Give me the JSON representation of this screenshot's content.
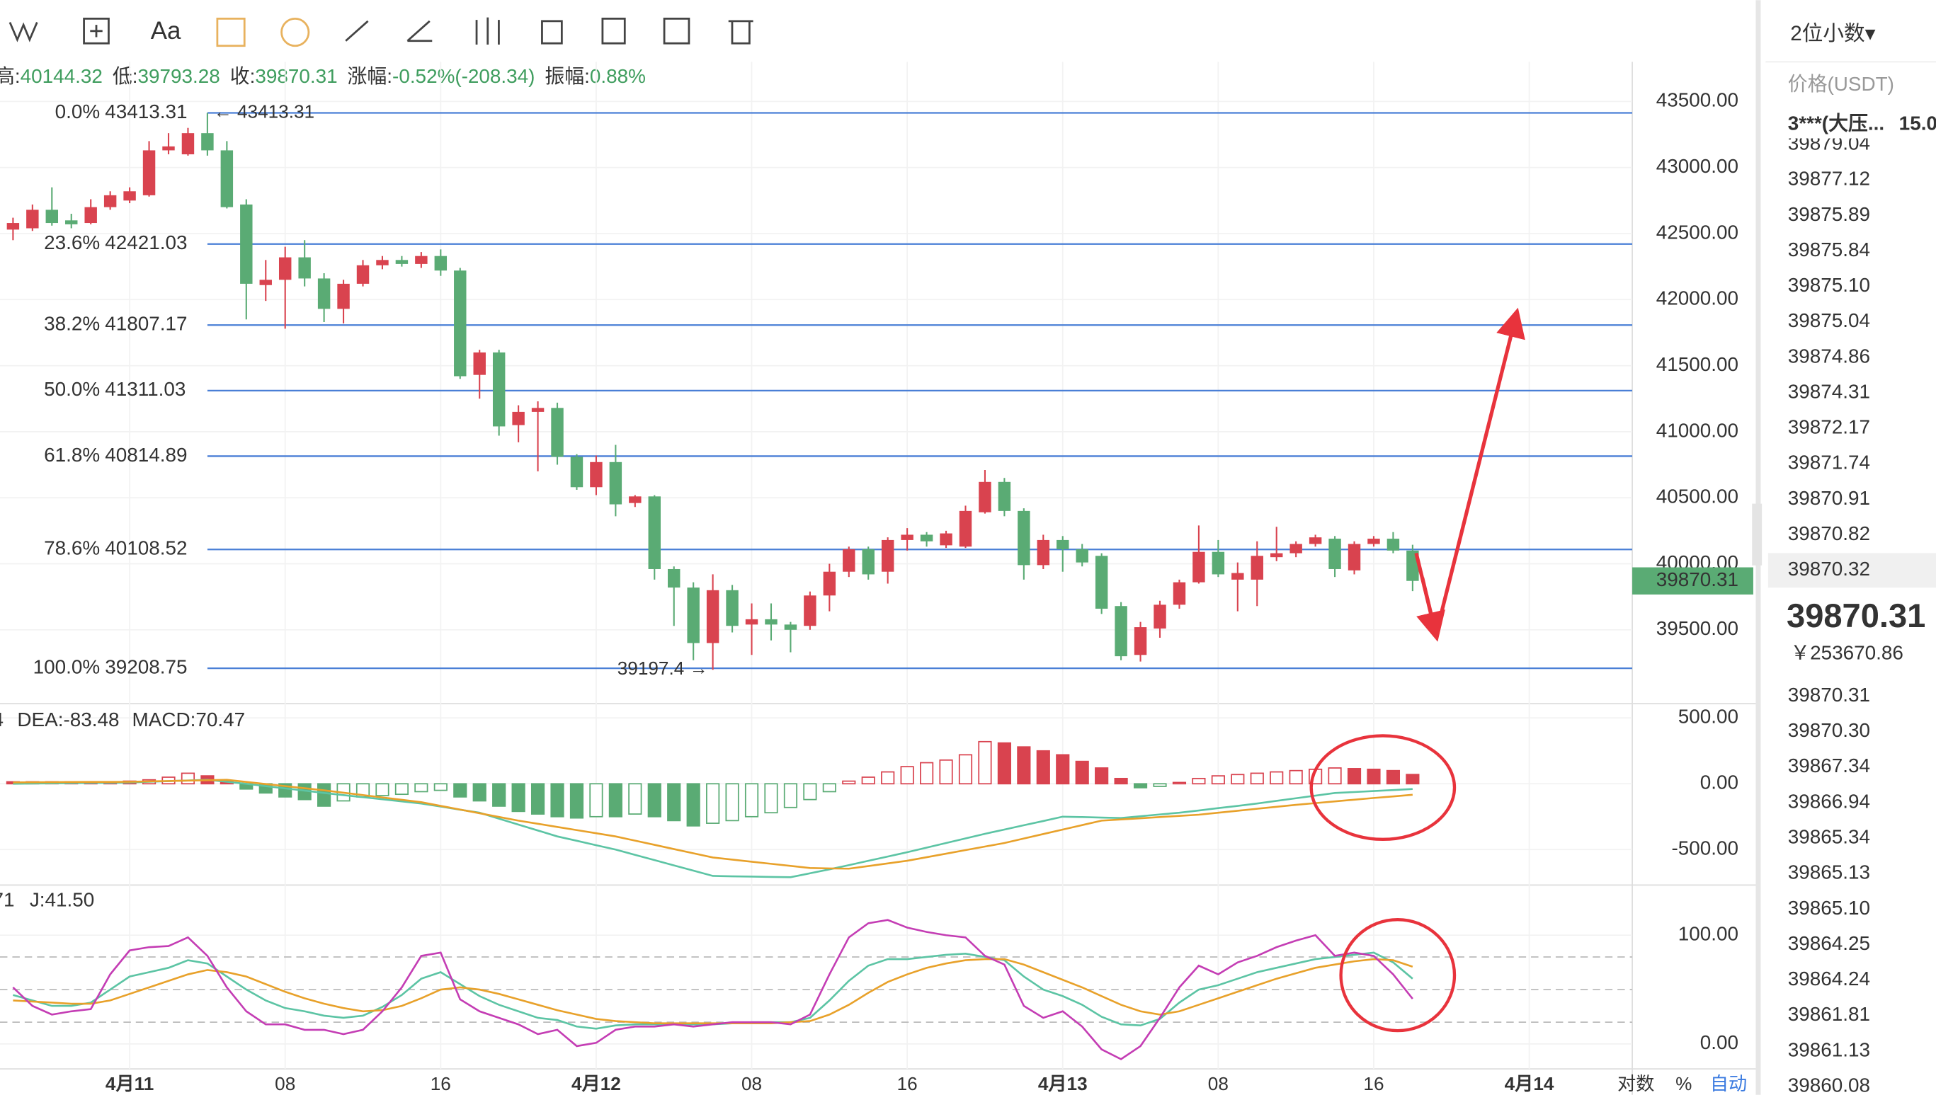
{
  "toolbar": {
    "font_button": "Aa"
  },
  "info_bar": [
    {
      "label": "高:",
      "value": "40144.32"
    },
    {
      "label": "低:",
      "value": "39793.28"
    },
    {
      "label": "收:",
      "value": "39870.31"
    },
    {
      "label": "涨幅:",
      "value": "-0.52%(-208.34)"
    },
    {
      "label": "振幅:",
      "value": "0.88%"
    }
  ],
  "axis_options": [
    "对数",
    "%",
    "自动"
  ],
  "order_book": {
    "precision": "2位小数▾",
    "header": "价格(USDT)",
    "big_order": "3***(大压...",
    "big_qty": "15.0",
    "asks": [
      "39879.04",
      "39877.12",
      "39875.89",
      "39875.84",
      "39875.10",
      "39875.04",
      "39874.86",
      "39874.31",
      "39872.17",
      "39871.74",
      "39870.91",
      "39870.82",
      "39870.32"
    ],
    "last_price": "39870.31",
    "cny": "￥253670.86",
    "bids": [
      "39870.31",
      "39870.30",
      "39867.34",
      "39866.94",
      "39865.34",
      "39865.13",
      "39865.10",
      "39864.25",
      "39864.24",
      "39861.81",
      "39861.13",
      "39860.08"
    ]
  },
  "chart_data": [
    {
      "type": "candlestick",
      "up_color": "#d9434f",
      "down_color": "#5aab74",
      "x": [
        -6,
        -5,
        -4,
        -3,
        -2,
        -1,
        0,
        1,
        2,
        3,
        4,
        5,
        6,
        7,
        8,
        9,
        10,
        11,
        12,
        13,
        14,
        15,
        16,
        17,
        18,
        19,
        20,
        21,
        22,
        23,
        24,
        25,
        26,
        27,
        28,
        29,
        30,
        31,
        32,
        33,
        34,
        35,
        36,
        37,
        38,
        39,
        40,
        41,
        42,
        43,
        44,
        45,
        46,
        47,
        48,
        49,
        50,
        51,
        52,
        53,
        54,
        55,
        56,
        57,
        58,
        59,
        60,
        61,
        62,
        63,
        64,
        65,
        66
      ],
      "open": [
        42530,
        42540,
        42680,
        42600,
        42580,
        42700,
        42750,
        42790,
        43130,
        43100,
        43260,
        43130,
        42720,
        42110,
        42150,
        42320,
        42160,
        41930,
        42120,
        42260,
        42300,
        42270,
        42330,
        42220,
        41430,
        41600,
        41050,
        41150,
        41180,
        40810,
        40580,
        40770,
        40460,
        40510,
        39960,
        39820,
        39400,
        39800,
        39540,
        39580,
        39540,
        39530,
        39760,
        39940,
        40110,
        39940,
        40180,
        40220,
        40140,
        40130,
        40390,
        40620,
        40400,
        39990,
        40180,
        40110,
        40060,
        39680,
        39310,
        39510,
        39690,
        39860,
        40090,
        39880,
        39880,
        40050,
        40080,
        40150,
        40190,
        39950,
        40150,
        40190,
        40100
      ],
      "high": [
        42620,
        42720,
        42850,
        42650,
        42760,
        42820,
        42850,
        43200,
        43260,
        43300,
        43413.31,
        43200,
        42760,
        42300,
        42400,
        42450,
        42200,
        42150,
        42300,
        42330,
        42330,
        42360,
        42380,
        42240,
        41620,
        41620,
        41200,
        41230,
        41220,
        40830,
        40820,
        40900,
        40520,
        40520,
        39980,
        39860,
        39920,
        39840,
        39700,
        39700,
        39560,
        39790,
        40000,
        40130,
        40130,
        40200,
        40270,
        40240,
        40250,
        40440,
        40710,
        40650,
        40420,
        40220,
        40210,
        40150,
        40080,
        39710,
        39560,
        39720,
        39880,
        40290,
        40180,
        40010,
        40170,
        40280,
        40170,
        40220,
        40210,
        40170,
        40210,
        40240,
        40144.32
      ],
      "low": [
        42450,
        42520,
        42560,
        42540,
        42570,
        42680,
        42730,
        42780,
        43100,
        43090,
        43090,
        42690,
        41850,
        41990,
        41780,
        42100,
        41830,
        41820,
        42100,
        42230,
        42250,
        42240,
        42180,
        41400,
        41250,
        40970,
        40920,
        40700,
        40750,
        40560,
        40520,
        40360,
        40430,
        39880,
        39530,
        39270,
        39197.4,
        39480,
        39310,
        39420,
        39330,
        39500,
        39640,
        39900,
        39880,
        39850,
        40100,
        40130,
        40120,
        40120,
        40380,
        40360,
        39880,
        39960,
        39940,
        39980,
        39620,
        39270,
        39260,
        39440,
        39660,
        39850,
        39900,
        39640,
        39680,
        40020,
        40050,
        40130,
        39900,
        39920,
        40130,
        40080,
        39793.28
      ],
      "close": [
        42580,
        42680,
        42580,
        42570,
        42700,
        42790,
        42820,
        43130,
        43160,
        43260,
        43130,
        42700,
        42120,
        42150,
        42320,
        42160,
        41930,
        42120,
        42260,
        42300,
        42270,
        42330,
        42220,
        41420,
        41600,
        41040,
        41150,
        41180,
        40810,
        40580,
        40770,
        40450,
        40510,
        39960,
        39820,
        39400,
        39800,
        39530,
        39580,
        39540,
        39500,
        39760,
        39940,
        40110,
        39920,
        40180,
        40220,
        40170,
        40230,
        40400,
        40620,
        40400,
        39990,
        40180,
        40110,
        40010,
        39660,
        39300,
        39520,
        39690,
        39860,
        40090,
        39920,
        39930,
        40060,
        40080,
        40150,
        40200,
        39960,
        40150,
        40190,
        40100,
        39870.31
      ],
      "ylim": [
        38960,
        43800
      ],
      "yticks": [
        {
          "value": 39500,
          "label": "39500.00"
        },
        {
          "value": 40000,
          "label": "40000.00"
        },
        {
          "value": 40500,
          "label": "40500.00"
        },
        {
          "value": 41000,
          "label": "41000.00"
        },
        {
          "value": 41500,
          "label": "41500.00"
        },
        {
          "value": 42000,
          "label": "42000.00"
        },
        {
          "value": 42500,
          "label": "42500.00"
        },
        {
          "value": 43000,
          "label": "43000.00"
        },
        {
          "value": 43500,
          "label": "43500.00"
        }
      ],
      "xlim": [
        -6.67,
        77.3
      ],
      "xticks": [
        {
          "value": 0,
          "label": "4月11"
        },
        {
          "value": 8,
          "label": "08"
        },
        16,
        {
          "value": 24,
          "label": "4月12"
        },
        {
          "value": 32,
          "label": "08"
        },
        {
          "value": 40,
          "label": "16"
        },
        {
          "value": 48,
          "label": "4月13"
        },
        {
          "value": 56,
          "label": "08"
        },
        {
          "value": 64,
          "label": "16"
        },
        {
          "value": 72,
          "label": "4月14"
        }
      ],
      "fib_color": "#4a7fd6",
      "fib_levels": [
        {
          "ratio": "0.0%",
          "value": 43413.31
        },
        {
          "ratio": "23.6%",
          "value": 42421.03
        },
        {
          "ratio": "38.2%",
          "value": 41807.17
        },
        {
          "ratio": "50.0%",
          "value": 41311.03
        },
        {
          "ratio": "61.8%",
          "value": 40814.89
        },
        {
          "ratio": "78.6%",
          "value": 40108.52
        },
        {
          "ratio": "100.0%",
          "value": 39208.75
        }
      ],
      "annotations": [
        "← 43413.31",
        "39197.4 →"
      ],
      "last_price_color": "#5aab74"
    },
    {
      "type": "macd",
      "legend_labels": [
        "4",
        "DEA:-83.48",
        "MACD:70.47"
      ],
      "legend_colors": [
        "#5cc4a4",
        "#e8a12a",
        "#d9434f"
      ],
      "up_color": "#d9434f",
      "down_color": "#5aab74",
      "x": [
        -6,
        -5,
        -4,
        -3,
        -2,
        -1,
        0,
        1,
        2,
        3,
        4,
        5,
        6,
        7,
        8,
        9,
        10,
        11,
        12,
        13,
        14,
        15,
        16,
        17,
        18,
        19,
        20,
        21,
        22,
        23,
        24,
        25,
        26,
        27,
        28,
        29,
        30,
        31,
        32,
        33,
        34,
        35,
        36,
        37,
        38,
        39,
        40,
        41,
        42,
        43,
        44,
        45,
        46,
        47,
        48,
        49,
        50,
        51,
        52,
        53,
        54,
        55,
        56,
        57,
        58,
        59,
        60,
        61,
        62,
        63,
        64,
        65,
        66
      ],
      "histogram": [
        15,
        15,
        15,
        15,
        15,
        15,
        20,
        30,
        50,
        80,
        60,
        20,
        -40,
        -70,
        -100,
        -120,
        -170,
        -130,
        -100,
        -90,
        -80,
        -60,
        -50,
        -100,
        -130,
        -170,
        -210,
        -230,
        -250,
        -260,
        -250,
        -250,
        -230,
        -250,
        -280,
        -320,
        -300,
        -280,
        -250,
        -220,
        -180,
        -120,
        -60,
        20,
        50,
        90,
        130,
        160,
        180,
        220,
        320,
        310,
        280,
        250,
        220,
        170,
        120,
        40,
        -30,
        -20,
        10,
        40,
        60,
        70,
        80,
        90,
        100,
        110,
        120,
        115,
        110,
        100,
        70.47
      ],
      "series": [
        {
          "color": "#5cc4a4",
          "values": [
            0,
            2,
            3,
            5,
            7,
            8,
            10,
            15,
            20,
            25,
            30,
            15,
            0,
            -18,
            -35,
            -52,
            -70,
            -86,
            -102,
            -118,
            -134,
            -150,
            -173,
            -197,
            -220,
            -265,
            -310,
            -355,
            -400,
            -433,
            -467,
            -500,
            -540,
            -580,
            -620,
            -660,
            -700,
            -703,
            -705,
            -708,
            -710,
            -680,
            -650,
            -618,
            -585,
            -553,
            -520,
            -485,
            -450,
            -415,
            -380,
            -348,
            -315,
            -283,
            -250,
            -253,
            -257,
            -260,
            -247,
            -233,
            -220,
            -203,
            -185,
            -168,
            -150,
            -130,
            -110,
            -90,
            -70,
            -63,
            -55,
            -48,
            -40
          ]
        },
        {
          "color": "#e8a12a",
          "values": [
            10,
            11,
            12,
            13,
            14,
            14,
            15,
            18,
            21,
            24,
            27,
            30,
            14,
            -2,
            -18,
            -34,
            -50,
            -68,
            -86,
            -104,
            -122,
            -140,
            -168,
            -196,
            -224,
            -252,
            -280,
            -304,
            -328,
            -352,
            -376,
            -400,
            -432,
            -464,
            -496,
            -528,
            -560,
            -576,
            -592,
            -608,
            -624,
            -640,
            -643,
            -645,
            -625,
            -605,
            -585,
            -558,
            -531,
            -504,
            -477,
            -450,
            -416,
            -382,
            -348,
            -314,
            -280,
            -271,
            -262,
            -253,
            -244,
            -235,
            -220,
            -205,
            -190,
            -175,
            -160,
            -147,
            -134,
            -121,
            -108,
            -96,
            -83.48
          ]
        }
      ],
      "ylim": [
        -760,
        590
      ],
      "yticks": [
        {
          "value": -500,
          "label": "-500.00"
        },
        {
          "value": 0,
          "label": "0.00"
        },
        {
          "value": 500,
          "label": "500.00"
        }
      ]
    },
    {
      "type": "line",
      "legend_labels": [
        "71",
        "J:41.50"
      ],
      "legend_colors": [
        "#e8a12a",
        "#c43db4"
      ],
      "x": [
        -6,
        -5,
        -4,
        -3,
        -2,
        -1,
        0,
        1,
        2,
        3,
        4,
        5,
        6,
        7,
        8,
        9,
        10,
        11,
        12,
        13,
        14,
        15,
        16,
        17,
        18,
        19,
        20,
        21,
        22,
        23,
        24,
        25,
        26,
        27,
        28,
        29,
        30,
        31,
        32,
        33,
        34,
        35,
        36,
        37,
        38,
        39,
        40,
        41,
        42,
        43,
        44,
        45,
        46,
        47,
        48,
        49,
        50,
        51,
        52,
        53,
        54,
        55,
        56,
        57,
        58,
        59,
        60,
        61,
        62,
        63,
        64,
        65,
        66
      ],
      "series": [
        {
          "color": "#5cc4a4",
          "values": [
            45,
            40,
            35,
            35,
            38,
            50,
            62,
            66,
            70,
            77,
            74,
            62,
            50,
            40,
            33,
            30,
            26,
            24,
            26,
            34,
            45,
            60,
            66,
            55,
            44,
            36,
            30,
            24,
            22,
            16,
            14,
            17,
            18,
            18,
            18,
            18,
            18,
            19,
            20,
            20,
            20,
            24,
            40,
            58,
            72,
            78,
            78,
            80,
            82,
            83,
            80,
            77,
            62,
            50,
            44,
            36,
            25,
            18,
            17,
            23,
            38,
            50,
            54,
            60,
            66,
            70,
            74,
            78,
            80,
            82,
            84,
            75,
            60
          ]
        },
        {
          "color": "#e8a12a",
          "values": [
            40,
            39,
            38,
            37,
            37,
            40,
            46,
            52,
            58,
            64,
            68,
            66,
            62,
            55,
            48,
            42,
            37,
            33,
            30,
            31,
            35,
            42,
            50,
            52,
            50,
            46,
            41,
            36,
            31,
            27,
            23,
            21,
            20,
            19,
            19,
            19,
            19,
            19,
            19,
            19,
            20,
            21,
            27,
            36,
            47,
            57,
            64,
            70,
            74,
            77,
            78,
            78,
            73,
            66,
            59,
            52,
            44,
            36,
            30,
            27,
            30,
            36,
            42,
            48,
            54,
            60,
            65,
            70,
            73,
            76,
            78,
            77,
            71
          ]
        },
        {
          "color": "#c43db4",
          "values": [
            52,
            35,
            27,
            30,
            32,
            64,
            86,
            89,
            90,
            98,
            81,
            52,
            30,
            18,
            18,
            13,
            13,
            9,
            13,
            30,
            52,
            81,
            84,
            41,
            30,
            24,
            18,
            9,
            13,
            -2,
            1,
            13,
            16,
            16,
            18,
            16,
            18,
            20,
            20,
            20,
            18,
            27,
            64,
            98,
            111,
            114,
            107,
            103,
            100,
            98,
            81,
            73,
            35,
            24,
            30,
            16,
            -5,
            -14,
            -2,
            24,
            52,
            72,
            64,
            75,
            81,
            89,
            95,
            100,
            81,
            84,
            81,
            64,
            41.5
          ]
        }
      ],
      "ref_lines": [
        80,
        50,
        20
      ],
      "ylim": [
        -23,
        145
      ],
      "yticks": [
        {
          "value": 0,
          "label": "0.00"
        },
        {
          "value": 100,
          "label": "100.00"
        }
      ]
    }
  ]
}
